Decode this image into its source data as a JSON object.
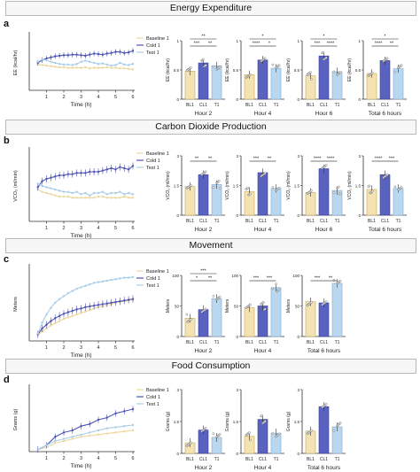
{
  "figure": {
    "sections": [
      {
        "title": "Energy Expenditure",
        "letter": "a"
      },
      {
        "title": "Carbon Dioxide Production",
        "letter": "b"
      },
      {
        "title": "Movement",
        "letter": "c"
      },
      {
        "title": "Food Consumption",
        "letter": "d"
      }
    ],
    "colors": {
      "baseline": "#ecd79c",
      "cold": "#4e55b5",
      "test": "#a9cde8",
      "axis": "#333333"
    }
  },
  "chart_data": [
    {
      "type": "line",
      "panel": "a",
      "xlabel": "Time (h)",
      "ylabel": "EE (kcal/hr)",
      "x_ticks": [
        "1",
        "2",
        "3",
        "4",
        "5",
        "6"
      ],
      "xlim": [
        0,
        6
      ],
      "ylim": [
        0,
        1
      ],
      "legend": [
        "Baseline 1",
        "Cold 1",
        "Test 1"
      ],
      "x": [
        0.5,
        0.75,
        1,
        1.25,
        1.5,
        1.75,
        2,
        2.25,
        2.5,
        2.75,
        3,
        3.25,
        3.5,
        3.75,
        4,
        4.25,
        4.5,
        4.75,
        5,
        5.25,
        5.5,
        5.75,
        6
      ],
      "series": [
        {
          "name": "Baseline 1",
          "values": [
            0.47,
            0.46,
            0.45,
            0.44,
            0.43,
            0.42,
            0.42,
            0.41,
            0.41,
            0.41,
            0.41,
            0.42,
            0.4,
            0.41,
            0.41,
            0.41,
            0.42,
            0.41,
            0.41,
            0.4,
            0.4,
            0.39,
            0.38
          ]
        },
        {
          "name": "Cold 1",
          "values": [
            0.5,
            0.55,
            0.58,
            0.6,
            0.62,
            0.63,
            0.64,
            0.64,
            0.65,
            0.65,
            0.64,
            0.63,
            0.65,
            0.67,
            0.66,
            0.65,
            0.67,
            0.68,
            0.7,
            0.7,
            0.68,
            0.69,
            0.72
          ]
        },
        {
          "name": "Test 1",
          "values": [
            0.52,
            0.56,
            0.55,
            0.52,
            0.5,
            0.48,
            0.47,
            0.47,
            0.46,
            0.48,
            0.52,
            0.54,
            0.52,
            0.5,
            0.48,
            0.49,
            0.47,
            0.45,
            0.46,
            0.5,
            0.47,
            0.46,
            0.48
          ]
        }
      ]
    },
    {
      "type": "bar",
      "panel": "a",
      "title": "Hour 2",
      "ylabel": "EE (kcal/hr)",
      "categories": [
        "BL1",
        "CL1",
        "T1"
      ],
      "values": [
        0.48,
        0.62,
        0.57
      ],
      "ylim": [
        0,
        1.0
      ],
      "significance": [
        "***",
        "**",
        "**"
      ]
    },
    {
      "type": "bar",
      "panel": "a",
      "title": "Hour 4",
      "ylabel": "EE (kcal/hr)",
      "categories": [
        "BL1",
        "CL1",
        "T1"
      ],
      "values": [
        0.42,
        0.67,
        0.53
      ],
      "ylim": [
        0,
        1.0
      ],
      "significance": [
        "****",
        "*",
        "*"
      ]
    },
    {
      "type": "bar",
      "panel": "a",
      "title": "Hour 6",
      "ylabel": "EE (kcal/hr)",
      "categories": [
        "BL1",
        "CL1",
        "T1"
      ],
      "values": [
        0.4,
        0.74,
        0.47
      ],
      "ylim": [
        0,
        1.0
      ],
      "significance": [
        "***",
        "****",
        "*"
      ]
    },
    {
      "type": "bar",
      "panel": "a",
      "title": "Total 6 hours",
      "ylabel": "EE (kcal/hr)",
      "categories": [
        "BL1",
        "CL1",
        "T1"
      ],
      "values": [
        0.44,
        0.66,
        0.52
      ],
      "ylim": [
        0,
        1.0
      ],
      "significance": [
        "****",
        "**",
        "*"
      ]
    },
    {
      "type": "line",
      "panel": "b",
      "xlabel": "Time (h)",
      "ylabel": "VCO₂ (ml/min)",
      "x_ticks": [
        "1",
        "2",
        "3",
        "4",
        "5",
        "6"
      ],
      "xlim": [
        0,
        6
      ],
      "ylim": [
        0,
        3
      ],
      "legend": [
        "Baseline 1",
        "Cold 1",
        "Test 1"
      ],
      "x": [
        0.5,
        0.75,
        1,
        1.25,
        1.5,
        1.75,
        2,
        2.25,
        2.5,
        2.75,
        3,
        3.25,
        3.5,
        3.75,
        4,
        4.25,
        4.5,
        4.75,
        5,
        5.25,
        5.5,
        5.75,
        6
      ],
      "series": [
        {
          "name": "Baseline 1",
          "values": [
            1.35,
            1.25,
            1.2,
            1.15,
            1.1,
            1.05,
            1.05,
            1.05,
            1.0,
            1.0,
            1.0,
            1.0,
            1.0,
            1.0,
            1.05,
            1.05,
            1.0,
            1.0,
            1.0,
            1.0,
            1.05,
            1.0,
            1.0
          ]
        },
        {
          "name": "Cold 1",
          "values": [
            1.45,
            1.7,
            1.8,
            1.85,
            1.9,
            1.95,
            1.95,
            2.0,
            2.0,
            2.05,
            2.05,
            2.05,
            2.1,
            2.1,
            2.1,
            2.15,
            2.2,
            2.25,
            2.2,
            2.3,
            2.25,
            2.2,
            2.35
          ]
        },
        {
          "name": "Test 1",
          "values": [
            1.6,
            1.5,
            1.45,
            1.4,
            1.35,
            1.3,
            1.25,
            1.25,
            1.2,
            1.25,
            1.15,
            1.2,
            1.1,
            1.2,
            1.2,
            1.25,
            1.15,
            1.2,
            1.2,
            1.25,
            1.15,
            1.2,
            1.15
          ]
        }
      ]
    },
    {
      "type": "bar",
      "panel": "b",
      "title": "Hour 2",
      "ylabel": "VCO₂ (ml/min)",
      "categories": [
        "BL1",
        "CL1",
        "T1"
      ],
      "values": [
        1.45,
        2.05,
        1.55
      ],
      "ylim": [
        0,
        3
      ],
      "significance": [
        "**",
        "**"
      ]
    },
    {
      "type": "bar",
      "panel": "b",
      "title": "Hour 4",
      "ylabel": "VCO₂ (ml/min)",
      "categories": [
        "BL1",
        "CL1",
        "T1"
      ],
      "values": [
        1.2,
        2.15,
        1.35
      ],
      "ylim": [
        0,
        3
      ],
      "significance": [
        "***",
        "**"
      ]
    },
    {
      "type": "bar",
      "panel": "b",
      "title": "Hour 6",
      "ylabel": "VCO₂ (ml/min)",
      "categories": [
        "BL1",
        "CL1",
        "T1"
      ],
      "values": [
        1.15,
        2.35,
        1.25
      ],
      "ylim": [
        0,
        3
      ],
      "significance": [
        "****",
        "****"
      ]
    },
    {
      "type": "bar",
      "panel": "b",
      "title": "Total 6 hours",
      "ylabel": "VCO₂ (ml/min)",
      "categories": [
        "BL1",
        "CL1",
        "T1"
      ],
      "values": [
        1.3,
        2.05,
        1.35
      ],
      "ylim": [
        0,
        3
      ],
      "significance": [
        "****",
        "***"
      ]
    },
    {
      "type": "line",
      "panel": "c",
      "xlabel": "Time (h)",
      "ylabel": "Meters",
      "x_ticks": [
        "1",
        "2",
        "3",
        "4",
        "5",
        "6"
      ],
      "xlim": [
        0,
        6
      ],
      "ylim": [
        0,
        100
      ],
      "legend": [
        "Baseline 1",
        "Cold 1",
        "Test 1"
      ],
      "x": [
        0.5,
        0.75,
        1,
        1.25,
        1.5,
        1.75,
        2,
        2.25,
        2.5,
        2.75,
        3,
        3.25,
        3.5,
        3.75,
        4,
        4.25,
        4.5,
        4.75,
        5,
        5.25,
        5.5,
        5.75,
        6
      ],
      "series": [
        {
          "name": "Baseline 1",
          "values": [
            8,
            13,
            17,
            21,
            24,
            27,
            30,
            32,
            34,
            36,
            38,
            40,
            42,
            44,
            46,
            47,
            49,
            50,
            52,
            53,
            54,
            55,
            56
          ]
        },
        {
          "name": "Cold 1",
          "values": [
            9,
            17,
            22,
            27,
            31,
            34,
            37,
            39,
            41,
            43,
            44,
            46,
            47,
            48,
            49,
            50,
            51,
            52,
            53,
            54,
            55,
            56,
            57
          ]
        },
        {
          "name": "Test 1",
          "values": [
            10,
            25,
            36,
            45,
            52,
            57,
            61,
            65,
            68,
            71,
            73,
            75,
            77,
            79,
            80,
            81,
            82,
            83,
            84,
            85,
            86,
            86,
            87
          ]
        }
      ]
    },
    {
      "type": "bar",
      "panel": "c",
      "title": "Hour 2",
      "ylabel": "Meters",
      "categories": [
        "BL1",
        "CL1",
        "T1"
      ],
      "values": [
        30,
        44,
        62
      ],
      "ylim": [
        0,
        100
      ],
      "significance": [
        "*",
        "**",
        "***"
      ]
    },
    {
      "type": "bar",
      "panel": "c",
      "title": "Hour 4",
      "ylabel": "Meters",
      "categories": [
        "BL1",
        "CL1",
        "T1"
      ],
      "values": [
        47,
        50,
        80
      ],
      "ylim": [
        0,
        100
      ],
      "significance": [
        "***",
        "***"
      ]
    },
    {
      "type": "bar",
      "panel": "c",
      "title": "Total 6 hours",
      "ylabel": "Meters",
      "categories": [
        "BL1",
        "CL1",
        "T1"
      ],
      "values": [
        57,
        55,
        87
      ],
      "ylim": [
        0,
        100
      ],
      "significance": [
        "***",
        "**"
      ]
    },
    {
      "type": "line",
      "panel": "d",
      "xlabel": "Time (h)",
      "ylabel": "Grams (g)",
      "x_ticks": [
        "1",
        "2",
        "3",
        "4",
        "5",
        "6"
      ],
      "xlim": [
        0,
        6
      ],
      "ylim": [
        0,
        3
      ],
      "legend": [
        "Baseline 1",
        "Cold 1",
        "Test 1"
      ],
      "x": [
        0.5,
        1,
        1.5,
        2,
        2.5,
        3,
        3.5,
        4,
        4.5,
        5,
        5.5,
        6
      ],
      "series": [
        {
          "name": "Baseline 1",
          "values": [
            0.1,
            0.2,
            0.4,
            0.5,
            0.6,
            0.7,
            0.75,
            0.8,
            0.85,
            0.9,
            0.95,
            1.0
          ]
        },
        {
          "name": "Cold 1",
          "values": [
            0.1,
            0.3,
            0.7,
            0.9,
            1.0,
            1.2,
            1.3,
            1.5,
            1.6,
            1.8,
            1.9,
            2.0
          ]
        },
        {
          "name": "Test 1",
          "values": [
            0.1,
            0.3,
            0.5,
            0.6,
            0.7,
            0.8,
            0.9,
            1.0,
            1.1,
            1.15,
            1.2,
            1.25
          ]
        }
      ]
    },
    {
      "type": "bar",
      "panel": "d",
      "title": "Hour 2",
      "ylabel": "Grams (g)",
      "categories": [
        "BL1",
        "CL1",
        "T1"
      ],
      "values": [
        0.5,
        1.1,
        0.75
      ],
      "ylim": [
        0,
        3
      ],
      "significance": []
    },
    {
      "type": "bar",
      "panel": "d",
      "title": "Hour 4",
      "ylabel": "Grams (g)",
      "categories": [
        "BL1",
        "CL1",
        "T1"
      ],
      "values": [
        0.8,
        1.6,
        0.95
      ],
      "ylim": [
        0,
        3
      ],
      "significance": []
    },
    {
      "type": "bar",
      "panel": "d",
      "title": "Total 6 hours",
      "ylabel": "Grams (g)",
      "categories": [
        "BL1",
        "CL1",
        "T1"
      ],
      "values": [
        1.05,
        2.2,
        1.25
      ],
      "ylim": [
        0,
        3
      ],
      "significance": []
    }
  ]
}
